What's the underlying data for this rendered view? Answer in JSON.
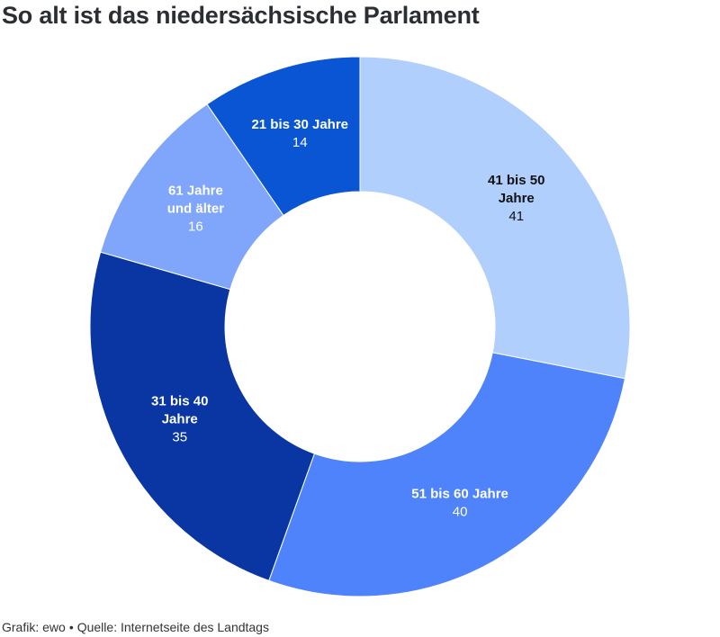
{
  "title": "So alt ist das niedersächsische Parlament",
  "footer": {
    "credit": "Grafik: ewo",
    "separator": "•",
    "source": "Quelle: Internetseite des Landtags"
  },
  "chart_data": {
    "type": "pie",
    "donut": true,
    "title": "So alt ist das niedersächsische Parlament",
    "slices": [
      {
        "label": "41 bis 50 Jahre",
        "label_lines": [
          "41 bis 50",
          "Jahre"
        ],
        "value": 41,
        "color": "#b0cffd",
        "text_color": "#111111"
      },
      {
        "label": "51 bis 60 Jahre",
        "label_lines": [
          "51 bis 60 Jahre"
        ],
        "value": 40,
        "color": "#4f83fb",
        "text_color": "#ffffff"
      },
      {
        "label": "31 bis 40 Jahre",
        "label_lines": [
          "31 bis 40",
          "Jahre"
        ],
        "value": 35,
        "color": "#0a36a3",
        "text_color": "#ffffff"
      },
      {
        "label": "61 Jahre und älter",
        "label_lines": [
          "61 Jahre",
          "und älter"
        ],
        "value": 16,
        "color": "#7fa6fa",
        "text_color": "#ffffff"
      },
      {
        "label": "21 bis 30 Jahre",
        "label_lines": [
          "21 bis 30 Jahre"
        ],
        "value": 14,
        "color": "#0a55d4",
        "text_color": "#ffffff"
      }
    ]
  }
}
